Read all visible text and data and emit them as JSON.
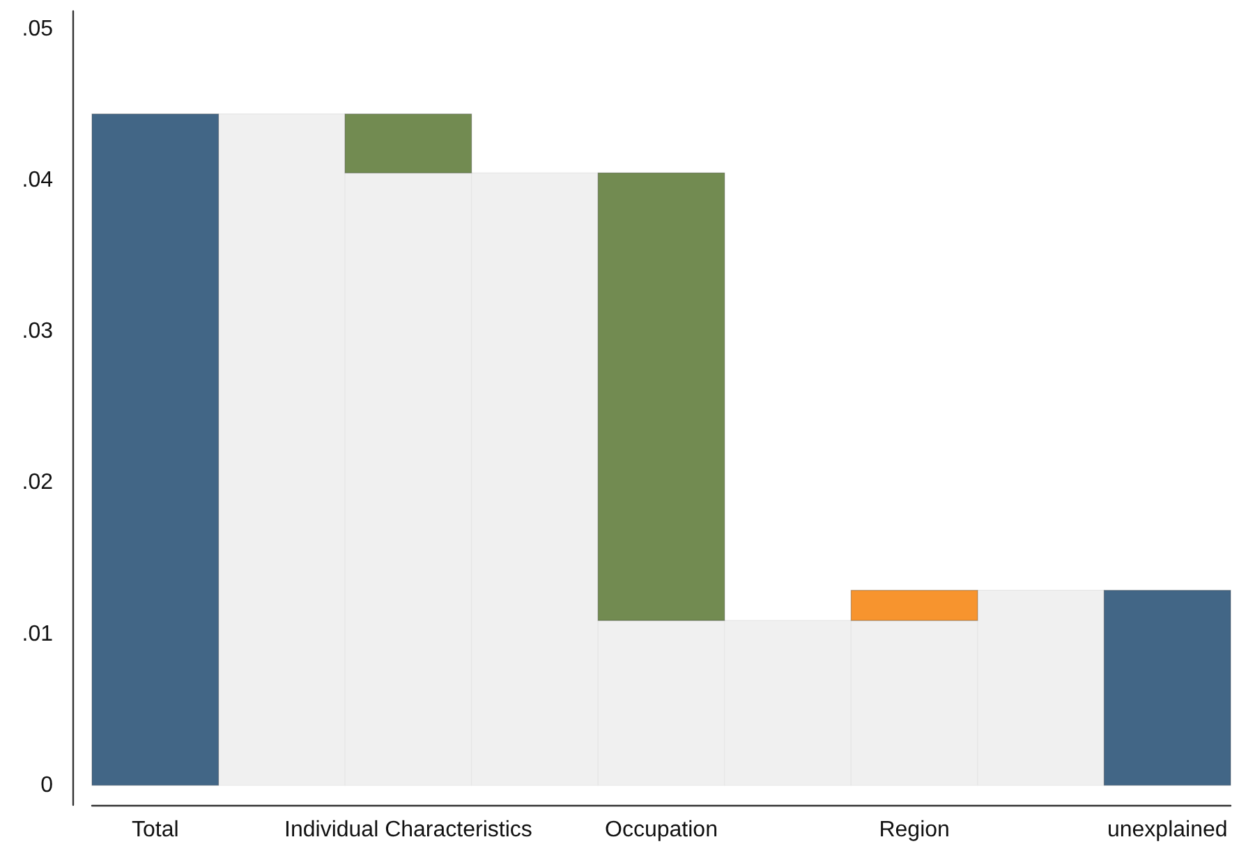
{
  "chart_data": {
    "type": "bar",
    "categories": [
      "Total",
      null,
      "Individual Characteristics",
      null,
      "Occupation",
      null,
      "Region",
      null,
      "unexplained"
    ],
    "series": [
      {
        "color": "#f0f0f0",
        "values": [
          null,
          0.0444,
          0.0405,
          0.0405,
          0.0109,
          0.0109,
          0.0109,
          0.0129,
          null
        ]
      },
      {
        "color": "#426686",
        "values": [
          0.0444,
          null,
          null,
          null,
          null,
          null,
          null,
          null,
          0.0129
        ]
      },
      {
        "color": "#728b51",
        "values": [
          null,
          null,
          0.0039,
          null,
          0.0296,
          null,
          null,
          null,
          null
        ],
        "base": [
          null,
          null,
          0.0405,
          null,
          0.0109,
          null,
          null,
          null,
          null
        ]
      },
      {
        "color": "#f7942e",
        "values": [
          null,
          null,
          null,
          null,
          null,
          null,
          0.002,
          null,
          null
        ],
        "base": [
          null,
          null,
          null,
          null,
          null,
          null,
          0.0109,
          null,
          null
        ]
      }
    ],
    "ylim": [
      -0.0013,
      0.0512
    ],
    "yticks": [
      0,
      {
        "value": 0.01,
        "label": ".01"
      },
      {
        "value": 0.02,
        "label": ".02"
      },
      {
        "value": 0.03,
        "label": ".03"
      },
      {
        "value": 0.04,
        "label": ".04"
      },
      {
        "value": 0.05,
        "label": ".05"
      }
    ],
    "grid": false
  }
}
